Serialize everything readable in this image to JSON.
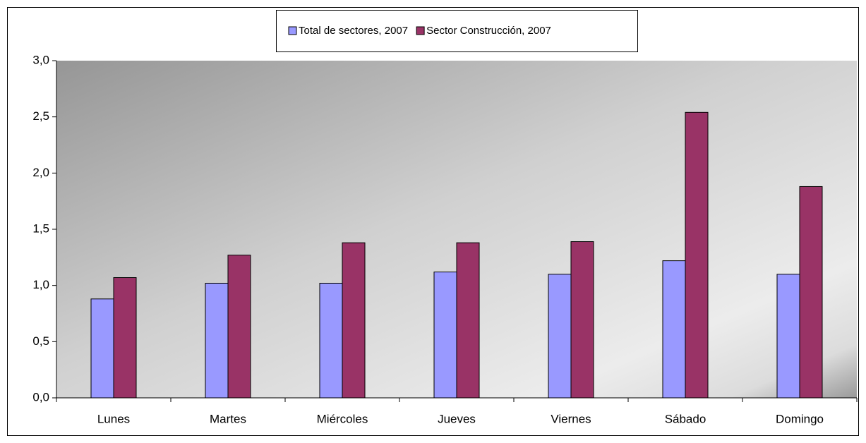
{
  "chart_data": {
    "type": "bar",
    "categories": [
      "Lunes",
      "Martes",
      "Miércoles",
      "Jueves",
      "Viernes",
      "Sábado",
      "Domingo"
    ],
    "series": [
      {
        "name": "Total de sectores, 2007",
        "color": "#9999ff",
        "values": [
          0.88,
          1.02,
          1.02,
          1.12,
          1.1,
          1.22,
          1.1
        ]
      },
      {
        "name": "Sector Construcción, 2007",
        "color": "#993366",
        "values": [
          1.07,
          1.27,
          1.38,
          1.38,
          1.39,
          2.54,
          1.88
        ]
      }
    ],
    "ylim": [
      0,
      3
    ],
    "yticks": [
      {
        "value": 0,
        "label": "0,0"
      },
      {
        "value": 0.5,
        "label": "0,5"
      },
      {
        "value": 1,
        "label": "1,0"
      },
      {
        "value": 1.5,
        "label": "1,5"
      },
      {
        "value": 2,
        "label": "2,0"
      },
      {
        "value": 2.5,
        "label": "2,5"
      },
      {
        "value": 3,
        "label": "3,0"
      }
    ],
    "legend": "top"
  }
}
